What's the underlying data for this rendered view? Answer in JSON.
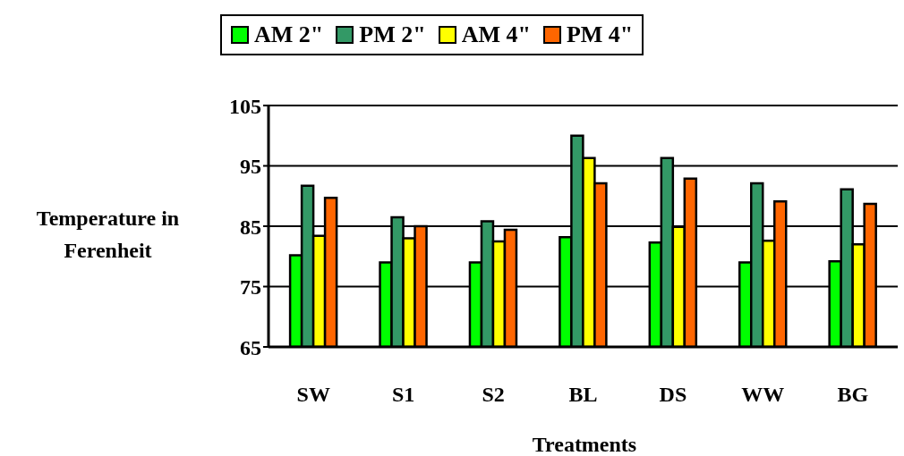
{
  "chart_data": {
    "type": "bar",
    "xlabel": "Treatments",
    "ylabel": "Temperature in Ferenheit",
    "categories": [
      "SW",
      "S1",
      "S2",
      "BL",
      "DS",
      "WW",
      "BG"
    ],
    "series": [
      {
        "name": "AM 2\"",
        "color": "#00ff00",
        "values": [
          80.2,
          79.0,
          79.0,
          83.2,
          82.3,
          79.0,
          79.2
        ]
      },
      {
        "name": "PM 2\"",
        "color": "#339966",
        "values": [
          91.7,
          86.5,
          85.8,
          100.0,
          96.3,
          92.1,
          91.1
        ]
      },
      {
        "name": "AM 4\"",
        "color": "#ffff00",
        "values": [
          83.4,
          83.0,
          82.5,
          96.3,
          84.9,
          82.6,
          82.0
        ]
      },
      {
        "name": "PM 4\"",
        "color": "#ff6600",
        "values": [
          89.7,
          85.0,
          84.4,
          92.1,
          92.9,
          89.1,
          88.7
        ]
      }
    ],
    "ylim": [
      65,
      105
    ],
    "yticks": [
      65,
      75,
      85,
      95,
      105
    ],
    "grid": "y",
    "legend": "top"
  }
}
